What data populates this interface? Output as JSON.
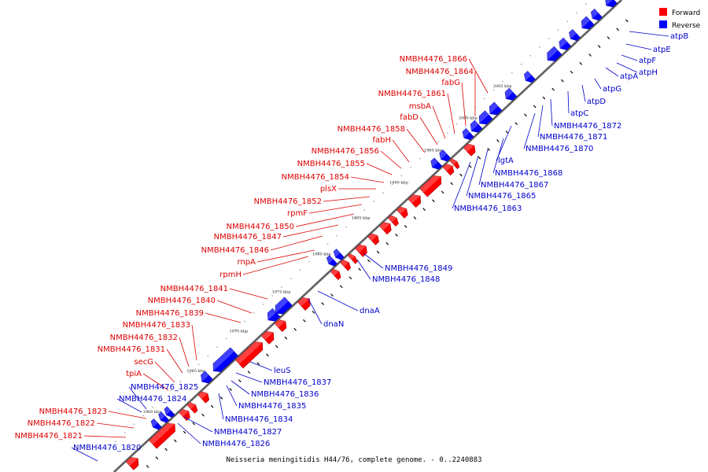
{
  "legend": [
    {
      "label": "Forward",
      "color": "#ff0000"
    },
    {
      "label": "Reverse",
      "color": "#0000ff"
    }
  ],
  "caption": "Neisseria meningitidis H44/76, complete genome. - 0..2240883",
  "tick_labels": [
    "1960 kbp",
    "1965 kbp",
    "1970 kbp",
    "1975 kbp",
    "1980 kbp",
    "1985 kbp",
    "1990 kbp",
    "1995 kbp",
    "2000 kbp",
    "2005 kbp"
  ],
  "forward_labels": [
    "NMBH4476_1866",
    "NMBH4476_1864",
    "fabG",
    "NMBH4476_1861",
    "msbA",
    "fabD",
    "NMBH4476_1858",
    "fabH",
    "NMBH4476_1856",
    "NMBH4476_1855",
    "NMBH4476_1854",
    "plsX",
    "NMBH4476_1852",
    "rpmF",
    "NMBH4476_1850",
    "NMBH4476_1847",
    "NMBH4476_1846",
    "rnpA",
    "rpmH",
    "NMBH4476_1841",
    "NMBH4476_1840",
    "NMBH4476_1839",
    "NMBH4476_1833",
    "NMBH4476_1832",
    "NMBH4476_1831",
    "secG",
    "tpiA",
    "NMBH4476_1823",
    "NMBH4476_1822",
    "NMBH4476_1821"
  ],
  "reverse_labels": [
    "atpB",
    "atpE",
    "atpF",
    "atpH",
    "atpA",
    "atpG",
    "atpD",
    "atpC",
    "NMBH4476_1872",
    "NMBH4476_1871",
    "NMBH4476_1870",
    "lgtA",
    "NMBH4476_1868",
    "NMBH4476_1867",
    "NMBH4476_1865",
    "NMBH4476_1863",
    "NMBH4476_1849",
    "NMBH4476_1848",
    "dnaA",
    "dnaN",
    "leuS",
    "NMBH4476_1837",
    "NMBH4476_1836",
    "NMBH4476_1835",
    "NMBH4476_1834",
    "NMBH4476_1827",
    "NMBH4476_1826",
    "NMBH4476_1825",
    "NMBH4476_1824",
    "NMBH4476_1820"
  ]
}
